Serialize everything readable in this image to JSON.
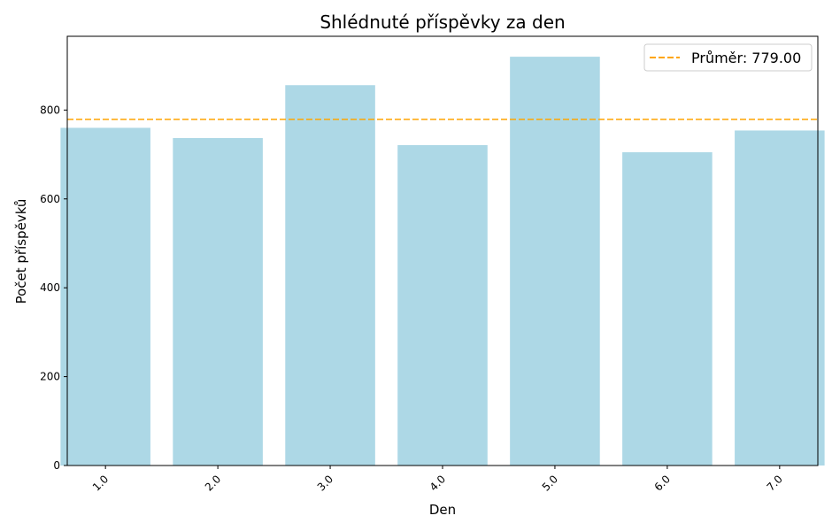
{
  "chart_data": {
    "type": "bar",
    "title": "Shlédnuté příspěvky za den",
    "xlabel": "Den",
    "ylabel": "Počet příspěvků",
    "categories": [
      "1.0",
      "2.0",
      "3.0",
      "4.0",
      "5.0",
      "6.0",
      "7.0"
    ],
    "values": [
      760,
      737,
      856,
      721,
      920,
      705,
      754
    ],
    "ylim": [
      0,
      966
    ],
    "yticks": [
      0,
      200,
      400,
      600,
      800
    ],
    "bar_color": "#add8e6",
    "grid": false,
    "mean_line": {
      "value": 779.0,
      "label": "Průměr: 779.00",
      "color": "#ffa500",
      "style": "dashed"
    },
    "legend": {
      "placement": "top-right",
      "entries": [
        "Průměr: 779.00"
      ]
    }
  }
}
